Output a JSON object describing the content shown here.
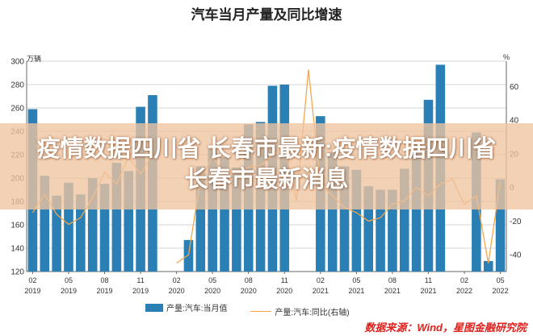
{
  "title": "汽车当月产量及同比增速",
  "overlay_text": "疫情数据四川省 长春市最新:疫情数据四川省 长春市最新消息",
  "source": "数据来源：Wind，星图金融研究院",
  "chart_data": {
    "type": "bar",
    "title": "汽车当月产量及同比增速",
    "left_unit": "万辆",
    "right_unit": "%",
    "y_left_lim": [
      120,
      300
    ],
    "y_left_ticks": [
      120,
      140,
      160,
      180,
      200,
      220,
      240,
      260,
      280,
      300
    ],
    "y_right_lim": [
      -50,
      75
    ],
    "y_right_ticks": [
      -40,
      -20,
      0,
      20,
      40,
      60
    ],
    "x_tick_labels": [
      {
        "idx": 0,
        "month": "02",
        "year": "2019"
      },
      {
        "idx": 3,
        "month": "05",
        "year": "2019"
      },
      {
        "idx": 6,
        "month": "08",
        "year": "2019"
      },
      {
        "idx": 9,
        "month": "11",
        "year": "2019"
      },
      {
        "idx": 12,
        "month": "02",
        "year": "2020"
      },
      {
        "idx": 15,
        "month": "05",
        "year": "2020"
      },
      {
        "idx": 18,
        "month": "08",
        "year": "2020"
      },
      {
        "idx": 21,
        "month": "11",
        "year": "2020"
      },
      {
        "idx": 24,
        "month": "02",
        "year": "2021"
      },
      {
        "idx": 27,
        "month": "05",
        "year": "2021"
      },
      {
        "idx": 30,
        "month": "08",
        "year": "2021"
      },
      {
        "idx": 33,
        "month": "11",
        "year": "2021"
      },
      {
        "idx": 36,
        "month": "02",
        "year": "2022"
      },
      {
        "idx": 39,
        "month": "05",
        "year": "2022"
      }
    ],
    "series": [
      {
        "name": "产量:汽车:当月值",
        "type": "bar",
        "axis": "left",
        "color": "#2a7fb4",
        "values": [
          259,
          202,
          185,
          196,
          186,
          200,
          195,
          213,
          206,
          261,
          271,
          null,
          null,
          147,
          210,
          225,
          218,
          209,
          246,
          248,
          279,
          280,
          null,
          null,
          253,
          222,
          210,
          207,
          193,
          190,
          190,
          208,
          230,
          267,
          297,
          null,
          null,
          239,
          129,
          199
        ]
      },
      {
        "name": "产量:汽车:同比(右轴)",
        "type": "line",
        "axis": "right",
        "color": "#f3a64a",
        "values": [
          -15,
          -4,
          -16,
          -22,
          -18,
          -6,
          9,
          2,
          18,
          8,
          20,
          null,
          -45,
          -40,
          5,
          18,
          8,
          9,
          12,
          13,
          19,
          25,
          -8,
          70,
          2,
          -5,
          -12,
          -15,
          -20,
          -18,
          -10,
          -8,
          0,
          -5,
          2,
          5,
          -10,
          -5,
          -45,
          4
        ]
      }
    ],
    "legend": [
      "产量:汽车:当月值",
      "产量:汽车:同比(右轴)"
    ],
    "legend_position": "bottom"
  }
}
